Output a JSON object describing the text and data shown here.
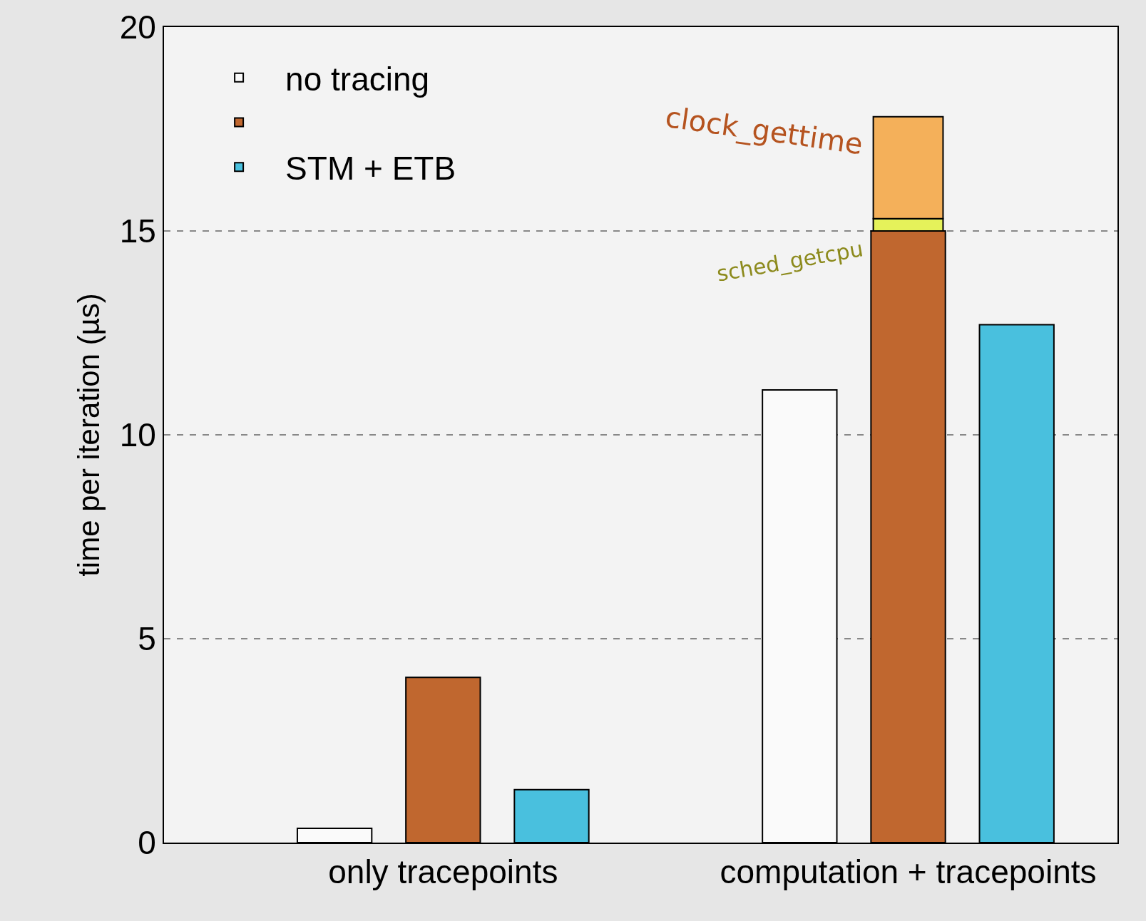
{
  "chart_data": {
    "type": "bar",
    "ylabel": "time per iteration (µs)",
    "categories": [
      "only tracepoints",
      "computation + tracepoints"
    ],
    "series": [
      {
        "name": "no tracing",
        "color": "#fafafa",
        "values": [
          0.35,
          11.1
        ]
      },
      {
        "color": "#c0672f",
        "values": [
          4.05,
          15.0
        ]
      },
      {
        "name": "sched_getcpu",
        "color": "#e5f25a",
        "values": [
          null,
          0.3
        ],
        "base": [
          null,
          15.0
        ]
      },
      {
        "name": "clock_gettime",
        "color": "#f4b05a",
        "values": [
          null,
          2.5
        ],
        "base": [
          null,
          15.3
        ]
      },
      {
        "name": "STM + ETB",
        "color": "#49c0de",
        "values": [
          1.3,
          12.7
        ]
      }
    ],
    "ylim": [
      0,
      20
    ],
    "yticks": [
      0,
      5,
      10,
      15,
      20
    ],
    "grid": "y",
    "line_style": "dashed",
    "legend": "top left"
  }
}
